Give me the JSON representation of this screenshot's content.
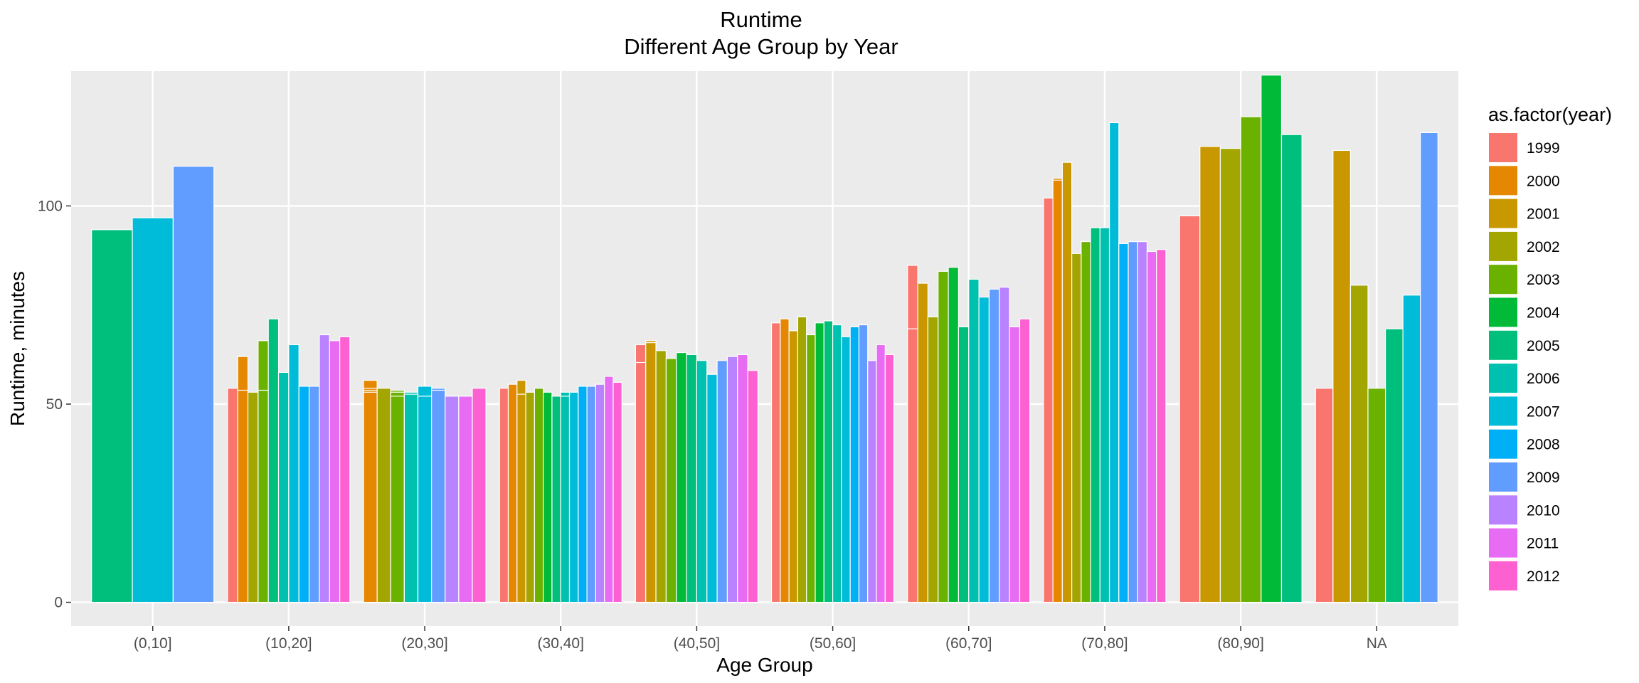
{
  "chart_data": {
    "type": "bar",
    "title": "Runtime",
    "subtitle": "Different Age Group by Year",
    "xlabel": "Age Group",
    "ylabel": "Runtime, minutes",
    "ylim": [
      -6,
      134
    ],
    "yticks": [
      0,
      50,
      100
    ],
    "grid": true,
    "legend_position": "right",
    "legend_title": "as.factor(year)",
    "years": [
      "1999",
      "2000",
      "2001",
      "2002",
      "2003",
      "2004",
      "2005",
      "2006",
      "2007",
      "2008",
      "2009",
      "2010",
      "2011",
      "2012"
    ],
    "colors": [
      "#F8766D",
      "#E58700",
      "#C99800",
      "#A3A500",
      "#6BB100",
      "#00BA38",
      "#00BF7D",
      "#00C0AF",
      "#00BCD8",
      "#00B0F6",
      "#619CFF",
      "#B983FF",
      "#E76BF3",
      "#FD61D1"
    ],
    "categories": [
      "(0,10]",
      "(10,20]",
      "(20,30]",
      "(30,40]",
      "(40,50]",
      "(50,60]",
      "(60,70]",
      "(70,80]",
      "(80,90]",
      "NA"
    ],
    "groups": [
      {
        "category": "(0,10]",
        "bars": [
          {
            "year": "2005",
            "values": [
              94
            ]
          },
          {
            "year": "2007",
            "values": [
              97
            ]
          },
          {
            "year": "2009",
            "values": [
              110
            ]
          }
        ]
      },
      {
        "category": "(10,20]",
        "bars": [
          {
            "year": "1999",
            "values": [
              54
            ]
          },
          {
            "year": "2000",
            "values": [
              62,
              53.5
            ]
          },
          {
            "year": "2002",
            "values": [
              53
            ]
          },
          {
            "year": "2003",
            "values": [
              66,
              53.5
            ]
          },
          {
            "year": "2005",
            "values": [
              71.5
            ]
          },
          {
            "year": "2006",
            "values": [
              58
            ]
          },
          {
            "year": "2007",
            "values": [
              65
            ]
          },
          {
            "year": "2008",
            "values": [
              54.5
            ]
          },
          {
            "year": "2009",
            "values": [
              54.5
            ]
          },
          {
            "year": "2010",
            "values": [
              67.5
            ]
          },
          {
            "year": "2011",
            "values": [
              66
            ]
          },
          {
            "year": "2012",
            "values": [
              67
            ]
          }
        ]
      },
      {
        "category": "(20,30]",
        "bars": [
          {
            "year": "2000",
            "values": [
              56,
              54,
              53.5,
              53
            ]
          },
          {
            "year": "2002",
            "values": [
              54
            ]
          },
          {
            "year": "2003",
            "values": [
              52,
              53,
              53.5,
              53
            ]
          },
          {
            "year": "2006",
            "values": [
              52.5,
              53
            ]
          },
          {
            "year": "2007",
            "values": [
              52,
              54.5,
              54.5
            ]
          },
          {
            "year": "2009",
            "values": [
              54,
              53.5
            ]
          },
          {
            "year": "2010",
            "values": [
              52
            ]
          },
          {
            "year": "2011",
            "values": [
              52
            ]
          },
          {
            "year": "2012",
            "values": [
              54
            ]
          }
        ]
      },
      {
        "category": "(30,40]",
        "bars": [
          {
            "year": "1999",
            "values": [
              54,
              54,
              54
            ]
          },
          {
            "year": "2000",
            "values": [
              55
            ]
          },
          {
            "year": "2001",
            "values": [
              56,
              52.5
            ]
          },
          {
            "year": "2002",
            "values": [
              53
            ]
          },
          {
            "year": "2003",
            "values": [
              54
            ]
          },
          {
            "year": "2004",
            "values": [
              53
            ]
          },
          {
            "year": "2005",
            "values": [
              52
            ]
          },
          {
            "year": "2006",
            "values": [
              52,
              53
            ]
          },
          {
            "year": "2007",
            "values": [
              53
            ]
          },
          {
            "year": "2008",
            "values": [
              54.5
            ]
          },
          {
            "year": "2009",
            "values": [
              54.5
            ]
          },
          {
            "year": "2010",
            "values": [
              55
            ]
          },
          {
            "year": "2011",
            "values": [
              57
            ]
          },
          {
            "year": "2012",
            "values": [
              55.5
            ]
          }
        ]
      },
      {
        "category": "(40,50]",
        "bars": [
          {
            "year": "1999",
            "values": [
              65,
              60.5
            ]
          },
          {
            "year": "2001",
            "values": [
              65.5,
              66
            ]
          },
          {
            "year": "2002",
            "values": [
              63.5
            ]
          },
          {
            "year": "2003",
            "values": [
              61.5
            ]
          },
          {
            "year": "2004",
            "values": [
              63
            ]
          },
          {
            "year": "2005",
            "values": [
              62.5
            ]
          },
          {
            "year": "2006",
            "values": [
              61
            ]
          },
          {
            "year": "2007",
            "values": [
              57.5
            ]
          },
          {
            "year": "2009",
            "values": [
              61
            ]
          },
          {
            "year": "2010",
            "values": [
              62
            ]
          },
          {
            "year": "2011",
            "values": [
              62.5
            ]
          },
          {
            "year": "2012",
            "values": [
              58.5
            ]
          }
        ]
      },
      {
        "category": "(50,60]",
        "bars": [
          {
            "year": "1999",
            "values": [
              70.5
            ]
          },
          {
            "year": "2000",
            "values": [
              71.5
            ]
          },
          {
            "year": "2001",
            "values": [
              68.5
            ]
          },
          {
            "year": "2002",
            "values": [
              72
            ]
          },
          {
            "year": "2003",
            "values": [
              67.5
            ]
          },
          {
            "year": "2004",
            "values": [
              70.5
            ]
          },
          {
            "year": "2005",
            "values": [
              71
            ]
          },
          {
            "year": "2006",
            "values": [
              70
            ]
          },
          {
            "year": "2007",
            "values": [
              67
            ]
          },
          {
            "year": "2008",
            "values": [
              69.5
            ]
          },
          {
            "year": "2009",
            "values": [
              70
            ]
          },
          {
            "year": "2010",
            "values": [
              61
            ]
          },
          {
            "year": "2011",
            "values": [
              65
            ]
          },
          {
            "year": "2012",
            "values": [
              62.5
            ]
          }
        ]
      },
      {
        "category": "(60,70]",
        "bars": [
          {
            "year": "1999",
            "values": [
              85,
              69
            ]
          },
          {
            "year": "2001",
            "values": [
              80.5
            ]
          },
          {
            "year": "2002",
            "values": [
              72
            ]
          },
          {
            "year": "2003",
            "values": [
              83.5
            ]
          },
          {
            "year": "2004",
            "values": [
              84.5
            ]
          },
          {
            "year": "2005",
            "values": [
              69.5
            ]
          },
          {
            "year": "2006",
            "values": [
              81.5
            ]
          },
          {
            "year": "2007",
            "values": [
              77
            ]
          },
          {
            "year": "2009",
            "values": [
              79
            ]
          },
          {
            "year": "2010",
            "values": [
              79.5
            ]
          },
          {
            "year": "2011",
            "values": [
              69.5
            ]
          },
          {
            "year": "2012",
            "values": [
              71.5
            ]
          }
        ]
      },
      {
        "category": "(70,80]",
        "bars": [
          {
            "year": "1999",
            "values": [
              102
            ]
          },
          {
            "year": "2000",
            "values": [
              107,
              106.5
            ]
          },
          {
            "year": "2001",
            "values": [
              111
            ]
          },
          {
            "year": "2002",
            "values": [
              88
            ]
          },
          {
            "year": "2003",
            "values": [
              91
            ]
          },
          {
            "year": "2005",
            "values": [
              94.5
            ]
          },
          {
            "year": "2006",
            "values": [
              94.5
            ]
          },
          {
            "year": "2007",
            "values": [
              121
            ]
          },
          {
            "year": "2008",
            "values": [
              90.5
            ]
          },
          {
            "year": "2009",
            "values": [
              91
            ]
          },
          {
            "year": "2010",
            "values": [
              91
            ]
          },
          {
            "year": "2011",
            "values": [
              88.5
            ]
          },
          {
            "year": "2012",
            "values": [
              89
            ]
          }
        ]
      },
      {
        "category": "(80,90]",
        "bars": [
          {
            "year": "1999",
            "values": [
              97.5
            ]
          },
          {
            "year": "2001",
            "values": [
              115
            ]
          },
          {
            "year": "2002",
            "values": [
              114.5
            ]
          },
          {
            "year": "2003",
            "values": [
              122.5
            ]
          },
          {
            "year": "2004",
            "values": [
              133
            ]
          },
          {
            "year": "2005",
            "values": [
              118
            ]
          }
        ]
      },
      {
        "category": "NA",
        "bars": [
          {
            "year": "1999",
            "values": [
              54
            ]
          },
          {
            "year": "2001",
            "values": [
              114
            ]
          },
          {
            "year": "2002",
            "values": [
              80
            ]
          },
          {
            "year": "2003",
            "values": [
              54
            ]
          },
          {
            "year": "2005",
            "values": [
              69
            ]
          },
          {
            "year": "2007",
            "values": [
              77.5
            ]
          },
          {
            "year": "2009",
            "values": [
              118.5
            ]
          }
        ]
      }
    ]
  }
}
